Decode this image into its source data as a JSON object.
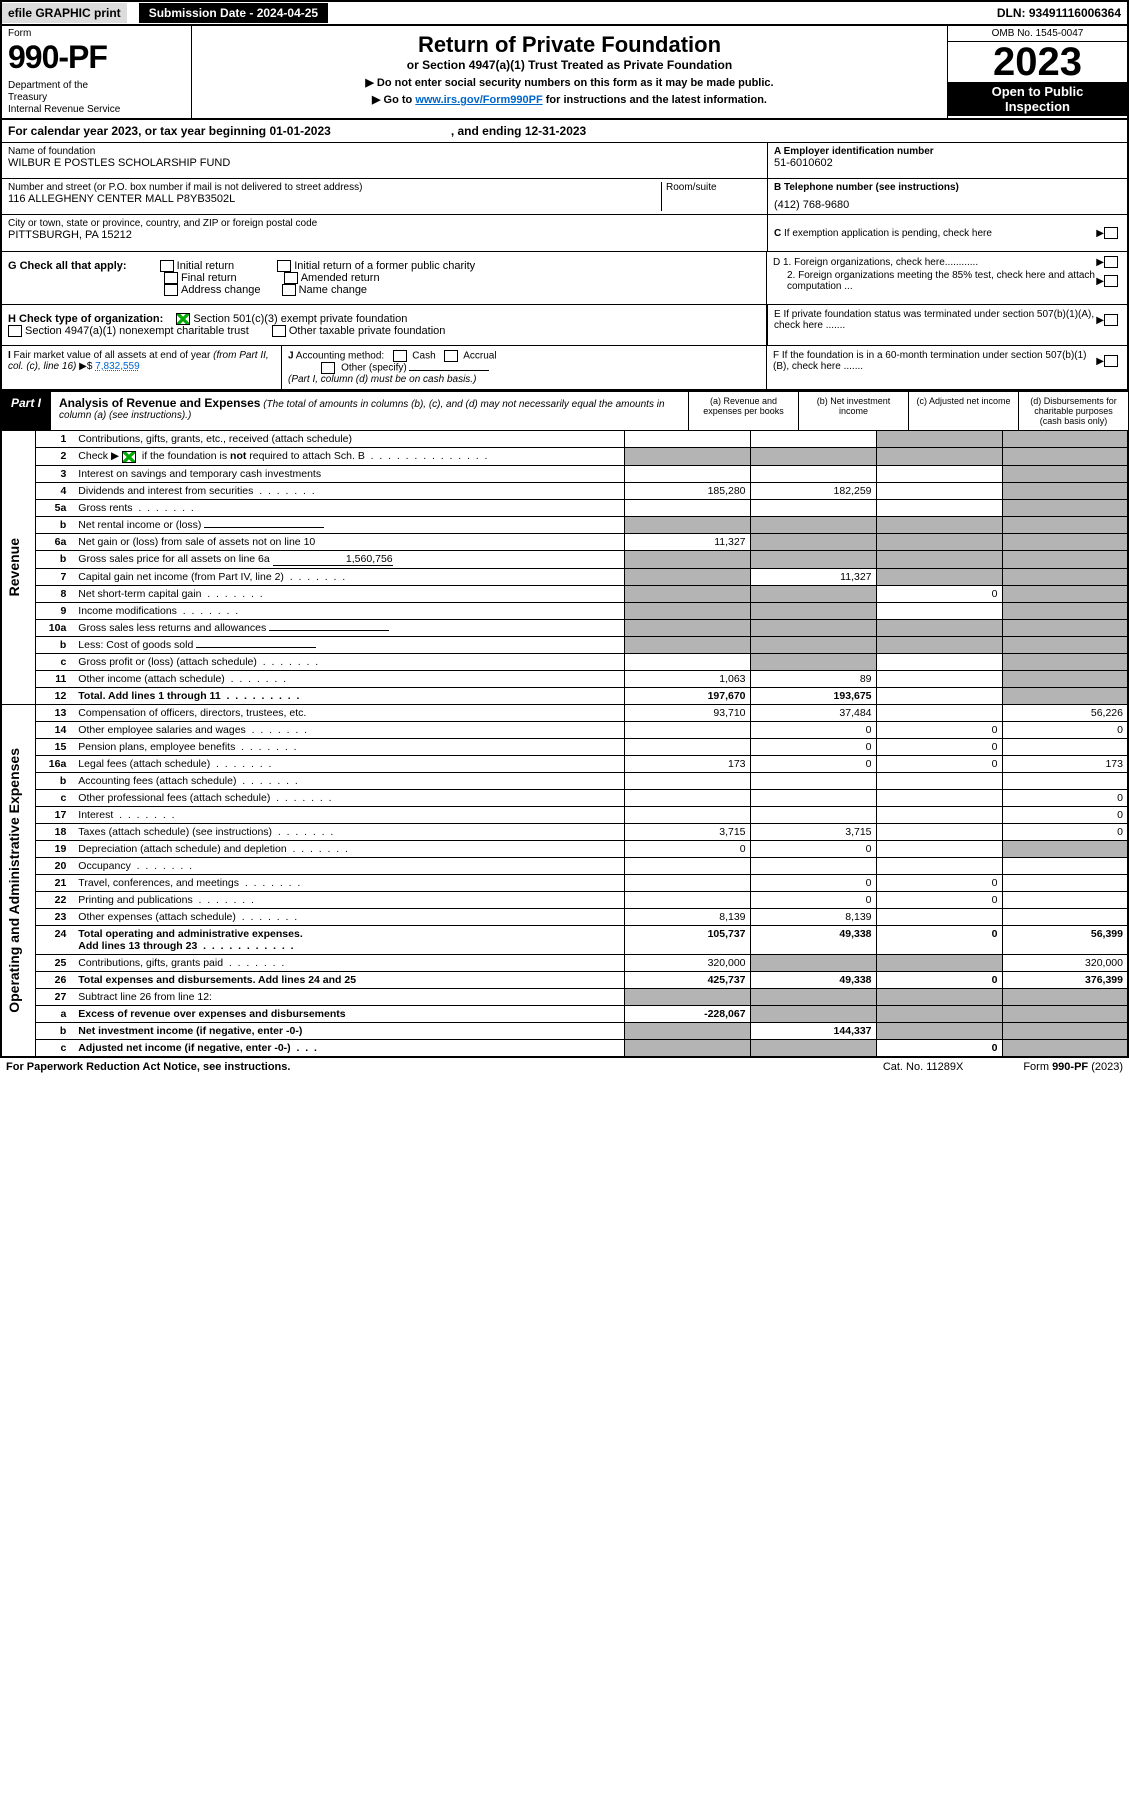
{
  "top_bar": {
    "efile": "efile GRAPHIC print",
    "sub_date_label": "Submission Date - 2024-04-25",
    "dln": "DLN: 93491116006364"
  },
  "header": {
    "form_label": "Form",
    "form_num": "990-PF",
    "dept": "Department of the Treasury\nInternal Revenue Service",
    "title": "Return of Private Foundation",
    "subtitle": "or Section 4947(a)(1) Trust Treated as Private Foundation",
    "note1": "▶ Do not enter social security numbers on this form as it may be made public.",
    "note2_pre": "▶ Go to ",
    "note2_link": "www.irs.gov/Form990PF",
    "note2_post": " for instructions and the latest information.",
    "omb": "OMB No. 1545-0047",
    "year": "2023",
    "open": "Open to Public Inspection"
  },
  "cal_year": {
    "text": "For calendar year 2023, or tax year beginning 01-01-2023",
    "ending": ", and ending 12-31-2023"
  },
  "info": {
    "name_label": "Name of foundation",
    "name": "WILBUR E POSTLES SCHOLARSHIP FUND",
    "addr_label": "Number and street (or P.O. box number if mail is not delivered to street address)",
    "addr": "116 ALLEGHENY CENTER MALL P8YB3502L",
    "room_label": "Room/suite",
    "city_label": "City or town, state or province, country, and ZIP or foreign postal code",
    "city": "PITTSBURGH, PA  15212",
    "a_label": "A Employer identification number",
    "a_val": "51-6010602",
    "b_label": "B Telephone number (see instructions)",
    "b_val": "(412) 768-9680",
    "c_label": "C If exemption application is pending, check here"
  },
  "g_section": {
    "label": "G Check all that apply:",
    "opts": [
      "Initial return",
      "Final return",
      "Address change",
      "Initial return of a former public charity",
      "Amended return",
      "Name change"
    ]
  },
  "d_section": {
    "d1": "D 1. Foreign organizations, check here............",
    "d2": "2. Foreign organizations meeting the 85% test, check here and attach computation ...",
    "e": "E  If private foundation status was terminated under section 507(b)(1)(A), check here ......."
  },
  "h_section": {
    "label": "H Check type of organization:",
    "opt1": "Section 501(c)(3) exempt private foundation",
    "opt2": "Section 4947(a)(1) nonexempt charitable trust",
    "opt3": "Other taxable private foundation"
  },
  "i_section": {
    "label": "I Fair market value of all assets at end of year (from Part II, col. (c), line 16)",
    "val": "7,832,559"
  },
  "j_section": {
    "label": "J Accounting method:",
    "cash": "Cash",
    "accrual": "Accrual",
    "other": "Other (specify)",
    "note": "(Part I, column (d) must be on cash basis.)"
  },
  "f_section": {
    "label": "F  If the foundation is in a 60-month termination under section 507(b)(1)(B), check here ......."
  },
  "part1": {
    "label": "Part I",
    "title": "Analysis of Revenue and Expenses",
    "title_note": "(The total of amounts in columns (b), (c), and (d) may not necessarily equal the amounts in column (a) (see instructions).)",
    "col_a": "(a) Revenue and expenses per books",
    "col_b": "(b) Net investment income",
    "col_c": "(c) Adjusted net income",
    "col_d": "(d) Disbursements for charitable purposes (cash basis only)"
  },
  "side_labels": {
    "revenue": "Revenue",
    "expenses": "Operating and Administrative Expenses"
  },
  "rows": [
    {
      "n": "1",
      "d": "Contributions, gifts, grants, etc., received (attach schedule)",
      "a": "",
      "b": "",
      "c": "",
      "dd": "",
      "shade_c": true,
      "shade_d": true
    },
    {
      "n": "2",
      "d": "Check ▶ ☑ if the foundation is not required to attach Sch. B",
      "a": "",
      "b": "",
      "c": "",
      "dd": "",
      "shade_a": true,
      "shade_b": true,
      "shade_c": true,
      "shade_d": true,
      "dots": true
    },
    {
      "n": "3",
      "d": "Interest on savings and temporary cash investments",
      "a": "",
      "b": "",
      "c": "",
      "dd": "",
      "shade_d": true
    },
    {
      "n": "4",
      "d": "Dividends and interest from securities",
      "a": "185,280",
      "b": "182,259",
      "c": "",
      "dd": "",
      "shade_d": true,
      "dots": true
    },
    {
      "n": "5a",
      "d": "Gross rents",
      "a": "",
      "b": "",
      "c": "",
      "dd": "",
      "shade_d": true,
      "dots": true
    },
    {
      "n": "b",
      "d": "Net rental income or (loss)",
      "a": "",
      "b": "",
      "c": "",
      "dd": "",
      "shade_a": true,
      "shade_b": true,
      "shade_c": true,
      "shade_d": true,
      "inline": true
    },
    {
      "n": "6a",
      "d": "Net gain or (loss) from sale of assets not on line 10",
      "a": "11,327",
      "b": "",
      "c": "",
      "dd": "",
      "shade_b": true,
      "shade_c": true,
      "shade_d": true
    },
    {
      "n": "b",
      "d": "Gross sales price for all assets on line 6a",
      "a": "",
      "b": "",
      "c": "",
      "dd": "",
      "shade_a": true,
      "shade_b": true,
      "shade_c": true,
      "shade_d": true,
      "inline": true,
      "inline_val": "1,560,756"
    },
    {
      "n": "7",
      "d": "Capital gain net income (from Part IV, line 2)",
      "a": "",
      "b": "11,327",
      "c": "",
      "dd": "",
      "shade_a": true,
      "shade_c": true,
      "shade_d": true,
      "dots": true
    },
    {
      "n": "8",
      "d": "Net short-term capital gain",
      "a": "",
      "b": "",
      "c": "0",
      "dd": "",
      "shade_a": true,
      "shade_b": true,
      "shade_d": true,
      "dots": true
    },
    {
      "n": "9",
      "d": "Income modifications",
      "a": "",
      "b": "",
      "c": "",
      "dd": "",
      "shade_a": true,
      "shade_b": true,
      "shade_d": true,
      "dots": true
    },
    {
      "n": "10a",
      "d": "Gross sales less returns and allowances",
      "a": "",
      "b": "",
      "c": "",
      "dd": "",
      "shade_a": true,
      "shade_b": true,
      "shade_c": true,
      "shade_d": true,
      "inline": true
    },
    {
      "n": "b",
      "d": "Less: Cost of goods sold",
      "a": "",
      "b": "",
      "c": "",
      "dd": "",
      "shade_a": true,
      "shade_b": true,
      "shade_c": true,
      "shade_d": true,
      "inline": true,
      "dots": true
    },
    {
      "n": "c",
      "d": "Gross profit or (loss) (attach schedule)",
      "a": "",
      "b": "",
      "c": "",
      "dd": "",
      "shade_b": true,
      "shade_d": true,
      "dots": true
    },
    {
      "n": "11",
      "d": "Other income (attach schedule)",
      "a": "1,063",
      "b": "89",
      "c": "",
      "dd": "",
      "shade_d": true,
      "dots": true
    },
    {
      "n": "12",
      "d": "Total. Add lines 1 through 11",
      "a": "197,670",
      "b": "193,675",
      "c": "",
      "dd": "",
      "bold": true,
      "shade_d": true,
      "dots": true
    },
    {
      "n": "13",
      "d": "Compensation of officers, directors, trustees, etc.",
      "a": "93,710",
      "b": "37,484",
      "c": "",
      "dd": "56,226"
    },
    {
      "n": "14",
      "d": "Other employee salaries and wages",
      "a": "",
      "b": "0",
      "c": "0",
      "dd": "0",
      "dots": true
    },
    {
      "n": "15",
      "d": "Pension plans, employee benefits",
      "a": "",
      "b": "0",
      "c": "0",
      "dd": "",
      "dots": true
    },
    {
      "n": "16a",
      "d": "Legal fees (attach schedule)",
      "a": "173",
      "b": "0",
      "c": "0",
      "dd": "173",
      "dots": true
    },
    {
      "n": "b",
      "d": "Accounting fees (attach schedule)",
      "a": "",
      "b": "",
      "c": "",
      "dd": "",
      "dots": true
    },
    {
      "n": "c",
      "d": "Other professional fees (attach schedule)",
      "a": "",
      "b": "",
      "c": "",
      "dd": "0",
      "dots": true
    },
    {
      "n": "17",
      "d": "Interest",
      "a": "",
      "b": "",
      "c": "",
      "dd": "0",
      "dots": true
    },
    {
      "n": "18",
      "d": "Taxes (attach schedule) (see instructions)",
      "a": "3,715",
      "b": "3,715",
      "c": "",
      "dd": "0",
      "dots": true
    },
    {
      "n": "19",
      "d": "Depreciation (attach schedule) and depletion",
      "a": "0",
      "b": "0",
      "c": "",
      "dd": "",
      "shade_d": true,
      "dots": true
    },
    {
      "n": "20",
      "d": "Occupancy",
      "a": "",
      "b": "",
      "c": "",
      "dd": "",
      "dots": true
    },
    {
      "n": "21",
      "d": "Travel, conferences, and meetings",
      "a": "",
      "b": "0",
      "c": "0",
      "dd": "",
      "dots": true
    },
    {
      "n": "22",
      "d": "Printing and publications",
      "a": "",
      "b": "0",
      "c": "0",
      "dd": "",
      "dots": true
    },
    {
      "n": "23",
      "d": "Other expenses (attach schedule)",
      "a": "8,139",
      "b": "8,139",
      "c": "",
      "dd": "",
      "dots": true
    },
    {
      "n": "24",
      "d": "Total operating and administrative expenses. Add lines 13 through 23",
      "a": "105,737",
      "b": "49,338",
      "c": "0",
      "dd": "56,399",
      "bold": true,
      "dots": true
    },
    {
      "n": "25",
      "d": "Contributions, gifts, grants paid",
      "a": "320,000",
      "b": "",
      "c": "",
      "dd": "320,000",
      "shade_b": true,
      "shade_c": true,
      "dots": true
    },
    {
      "n": "26",
      "d": "Total expenses and disbursements. Add lines 24 and 25",
      "a": "425,737",
      "b": "49,338",
      "c": "0",
      "dd": "376,399",
      "bold": true
    },
    {
      "n": "27",
      "d": "Subtract line 26 from line 12:",
      "a": "",
      "b": "",
      "c": "",
      "dd": "",
      "shade_a": true,
      "shade_b": true,
      "shade_c": true,
      "shade_d": true
    },
    {
      "n": "a",
      "d": "Excess of revenue over expenses and disbursements",
      "a": "-228,067",
      "b": "",
      "c": "",
      "dd": "",
      "bold": true,
      "shade_b": true,
      "shade_c": true,
      "shade_d": true
    },
    {
      "n": "b",
      "d": "Net investment income (if negative, enter -0-)",
      "a": "",
      "b": "144,337",
      "c": "",
      "dd": "",
      "bold": true,
      "shade_a": true,
      "shade_c": true,
      "shade_d": true
    },
    {
      "n": "c",
      "d": "Adjusted net income (if negative, enter -0-)",
      "a": "",
      "b": "",
      "c": "0",
      "dd": "",
      "bold": true,
      "shade_a": true,
      "shade_b": true,
      "shade_d": true,
      "dots": true
    }
  ],
  "footer": {
    "left": "For Paperwork Reduction Act Notice, see instructions.",
    "mid": "Cat. No. 11289X",
    "right": "Form 990-PF (2023)"
  },
  "colors": {
    "shaded": "#b4b4b4",
    "link": "#0066cc",
    "green_check": "#0a9040"
  }
}
